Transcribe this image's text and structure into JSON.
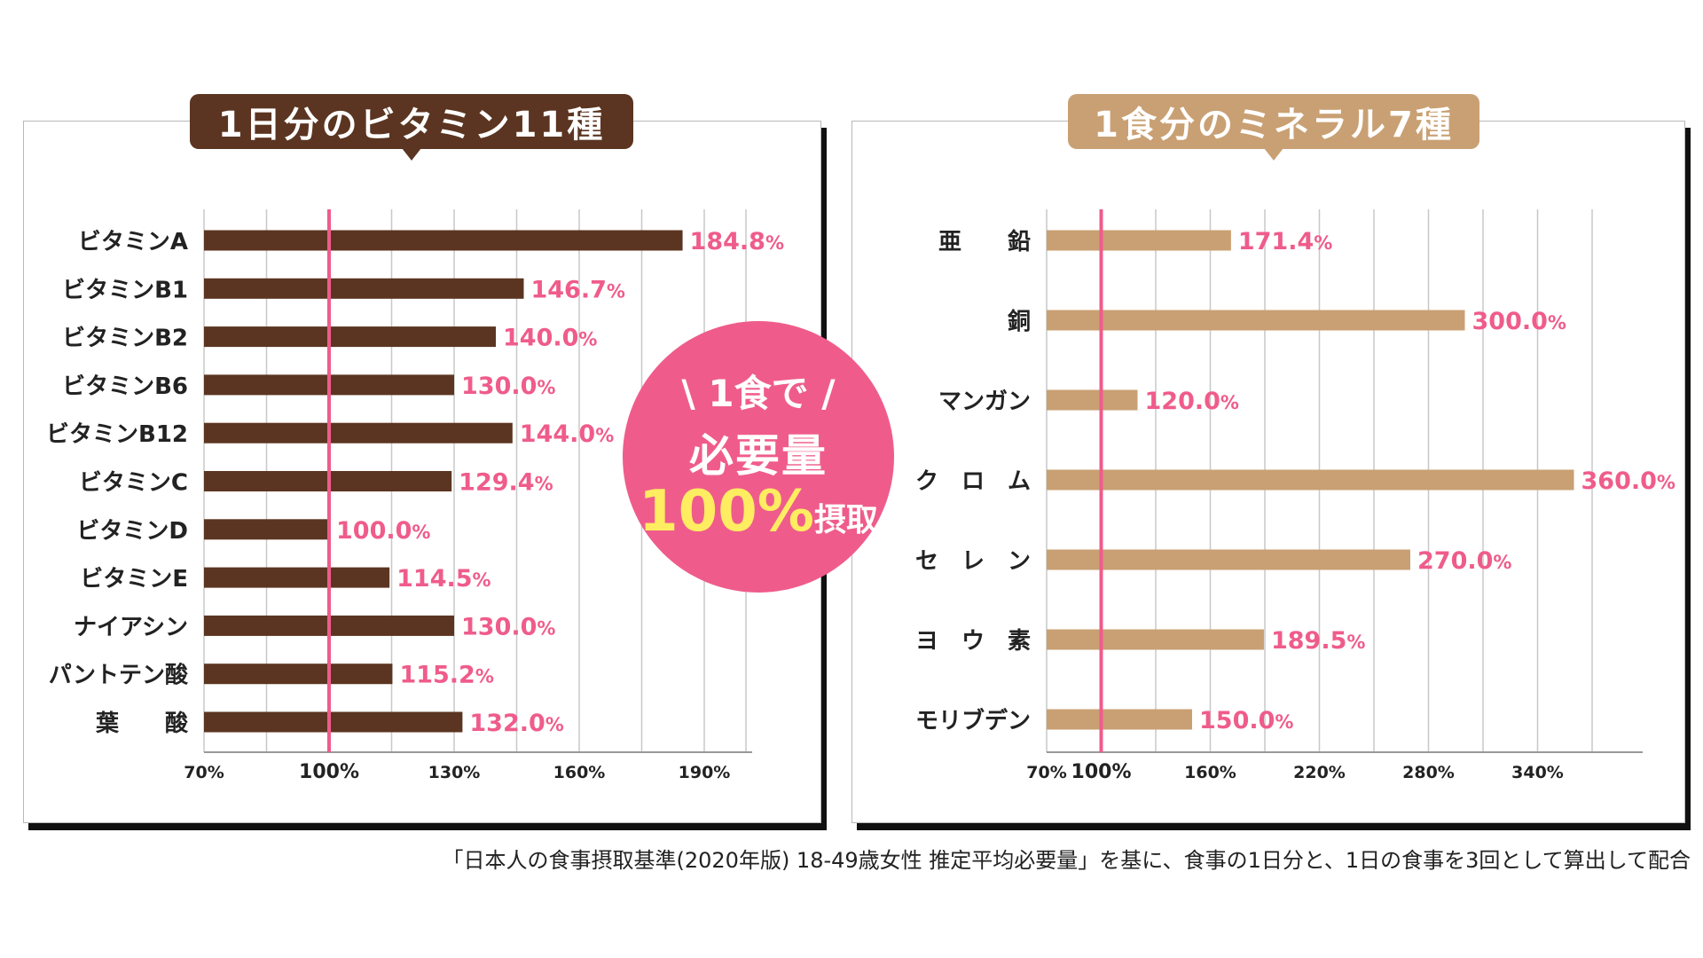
{
  "colors": {
    "vitamin_bar": "#5b3521",
    "mineral_bar": "#c9a073",
    "accent_pink": "#ef5c8b",
    "yellow": "#ffed61",
    "grid": "#c8c8c8"
  },
  "badge": {
    "line1": "\\ 1食で /",
    "line2": "必要量",
    "line3_big": "100%",
    "line3_small": "摂取"
  },
  "footnote": "「日本人の食事摂取基準(2020年版) 18-49歳女性 推定平均必要量」を基に、食事の1日分と、1日の食事を3回として算出して配合",
  "chart_data": [
    {
      "type": "bar",
      "orientation": "horizontal",
      "title": "1日分のビタミン11種",
      "categories": [
        "ビタミンA",
        "ビタミンB1",
        "ビタミンB2",
        "ビタミンB6",
        "ビタミンB12",
        "ビタミンC",
        "ビタミンD",
        "ビタミンE",
        "ナイアシン",
        "パントテン酸",
        "葉　　酸"
      ],
      "values": [
        184.8,
        146.7,
        140.0,
        130.0,
        144.0,
        129.4,
        100.0,
        114.5,
        130.0,
        115.2,
        132.0
      ],
      "value_labels": [
        {
          "num": "184.8",
          "pct": "%"
        },
        {
          "num": "146.7",
          "pct": "%"
        },
        {
          "num": "140.0",
          "pct": "%"
        },
        {
          "num": "130.0",
          "pct": "%"
        },
        {
          "num": "144.0",
          "pct": "%"
        },
        {
          "num": "129.4",
          "pct": "%"
        },
        {
          "num": "100.0",
          "pct": "%"
        },
        {
          "num": "114.5",
          "pct": "%"
        },
        {
          "num": "130.0",
          "pct": "%"
        },
        {
          "num": "115.2",
          "pct": "%"
        },
        {
          "num": "132.0",
          "pct": "%"
        }
      ],
      "xlim": [
        70,
        200
      ],
      "grid_values": [
        70,
        85,
        100,
        115,
        130,
        145,
        160,
        175,
        190,
        200
      ],
      "ticks": [
        {
          "value": 70,
          "label": "70%",
          "highlight": false
        },
        {
          "value": 100,
          "label": "100%",
          "highlight": true
        },
        {
          "value": 130,
          "label": "130%",
          "highlight": false
        },
        {
          "value": 160,
          "label": "160%",
          "highlight": false
        },
        {
          "value": 190,
          "label": "190%",
          "highlight": false
        }
      ],
      "reference_line": 100
    },
    {
      "type": "bar",
      "orientation": "horizontal",
      "title": "1食分のミネラル7種",
      "categories": [
        "亜　　鉛",
        "銅",
        "マンガン",
        "ク　ロ　ム",
        "セ　レ　ン",
        "ヨ　ウ　素",
        "モリブデン"
      ],
      "values": [
        171.4,
        300.0,
        120.0,
        360.0,
        270.0,
        189.5,
        150.0
      ],
      "value_labels": [
        {
          "num": "171.4",
          "pct": "%"
        },
        {
          "num": "300.0",
          "pct": "%"
        },
        {
          "num": "120.0",
          "pct": "%"
        },
        {
          "num": "360.0",
          "pct": "%"
        },
        {
          "num": "270.0",
          "pct": "%"
        },
        {
          "num": "189.5",
          "pct": "%"
        },
        {
          "num": "150.0",
          "pct": "%"
        }
      ],
      "xlim": [
        70,
        400
      ],
      "grid_values": [
        70,
        100,
        130,
        160,
        190,
        220,
        250,
        280,
        310,
        340,
        370
      ],
      "ticks": [
        {
          "value": 70,
          "label": "70%",
          "highlight": false
        },
        {
          "value": 100,
          "label": "100%",
          "highlight": true
        },
        {
          "value": 160,
          "label": "160%",
          "highlight": false
        },
        {
          "value": 220,
          "label": "220%",
          "highlight": false
        },
        {
          "value": 280,
          "label": "280%",
          "highlight": false
        },
        {
          "value": 340,
          "label": "340%",
          "highlight": false
        }
      ],
      "reference_line": 100
    }
  ]
}
